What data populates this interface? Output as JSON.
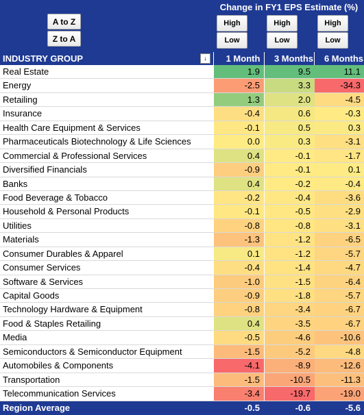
{
  "sort_buttons": {
    "a_to_z": "A to Z",
    "z_to_a": "Z to A"
  },
  "change_title": "Change in FY1 EPS Estimate (%)",
  "high_low": {
    "high": "High",
    "low": "Low"
  },
  "columns": {
    "industry_group": "INDUSTRY GROUP",
    "filter_icon": "↓",
    "month1": "1 Month",
    "months3": "3 Months",
    "months6": "6 Months"
  },
  "rows": [
    {
      "name": "Real Estate",
      "m1": "1.9",
      "m3": "9.5",
      "m6": "11.1"
    },
    {
      "name": "Energy",
      "m1": "-2.5",
      "m3": "3.3",
      "m6": "-34.3"
    },
    {
      "name": "Retailing",
      "m1": "1.3",
      "m3": "2.0",
      "m6": "-4.5"
    },
    {
      "name": "Insurance",
      "m1": "-0.4",
      "m3": "0.6",
      "m6": "-0.3"
    },
    {
      "name": "Health Care Equipment & Services",
      "m1": "-0.1",
      "m3": "0.5",
      "m6": "0.3"
    },
    {
      "name": "Pharmaceuticals Biotechnology & Life Sciences",
      "m1": "0.0",
      "m3": "0.3",
      "m6": "-3.1"
    },
    {
      "name": "Commercial & Professional Services",
      "m1": "0.4",
      "m3": "-0.1",
      "m6": "-1.7"
    },
    {
      "name": "Diversified Financials",
      "m1": "-0.9",
      "m3": "-0.1",
      "m6": "0.1"
    },
    {
      "name": "Banks",
      "m1": "0.4",
      "m3": "-0.2",
      "m6": "-0.4"
    },
    {
      "name": "Food Beverage & Tobacco",
      "m1": "-0.2",
      "m3": "-0.4",
      "m6": "-3.6"
    },
    {
      "name": "Household & Personal Products",
      "m1": "-0.1",
      "m3": "-0.5",
      "m6": "-2.9"
    },
    {
      "name": "Utilities",
      "m1": "-0.8",
      "m3": "-0.8",
      "m6": "-3.1"
    },
    {
      "name": "Materials",
      "m1": "-1.3",
      "m3": "-1.2",
      "m6": "-6.5"
    },
    {
      "name": "Consumer Durables & Apparel",
      "m1": "0.1",
      "m3": "-1.2",
      "m6": "-5.7"
    },
    {
      "name": "Consumer Services",
      "m1": "-0.4",
      "m3": "-1.4",
      "m6": "-4.7"
    },
    {
      "name": "Software & Services",
      "m1": "-1.0",
      "m3": "-1.5",
      "m6": "-6.4"
    },
    {
      "name": "Capital Goods",
      "m1": "-0.9",
      "m3": "-1.8",
      "m6": "-5.7"
    },
    {
      "name": "Technology Hardware & Equipment",
      "m1": "-0.8",
      "m3": "-3.4",
      "m6": "-6.7"
    },
    {
      "name": "Food & Staples Retailing",
      "m1": "0.4",
      "m3": "-3.5",
      "m6": "-6.7"
    },
    {
      "name": "Media",
      "m1": "-0.5",
      "m3": "-4.6",
      "m6": "-10.6"
    },
    {
      "name": "Semiconductors & Semiconductor Equipment",
      "m1": "-1.5",
      "m3": "-5.2",
      "m6": "-4.8"
    },
    {
      "name": "Automobiles & Components",
      "m1": "-4.1",
      "m3": "-8.9",
      "m6": "-12.6"
    },
    {
      "name": "Transportation",
      "m1": "-1.5",
      "m3": "-10.5",
      "m6": "-11.3"
    },
    {
      "name": "Telecommunication Services",
      "m1": "-3.4",
      "m3": "-19.7",
      "m6": "-19.0"
    }
  ],
  "region_average": {
    "label": "Region Average",
    "m1": "-0.5",
    "m3": "-0.6",
    "m6": "-5.6"
  },
  "colors": {
    "header_bg": "#1f3a93",
    "high": "#63be7b",
    "mid": "#ffeb84",
    "low": "#f8696b"
  }
}
